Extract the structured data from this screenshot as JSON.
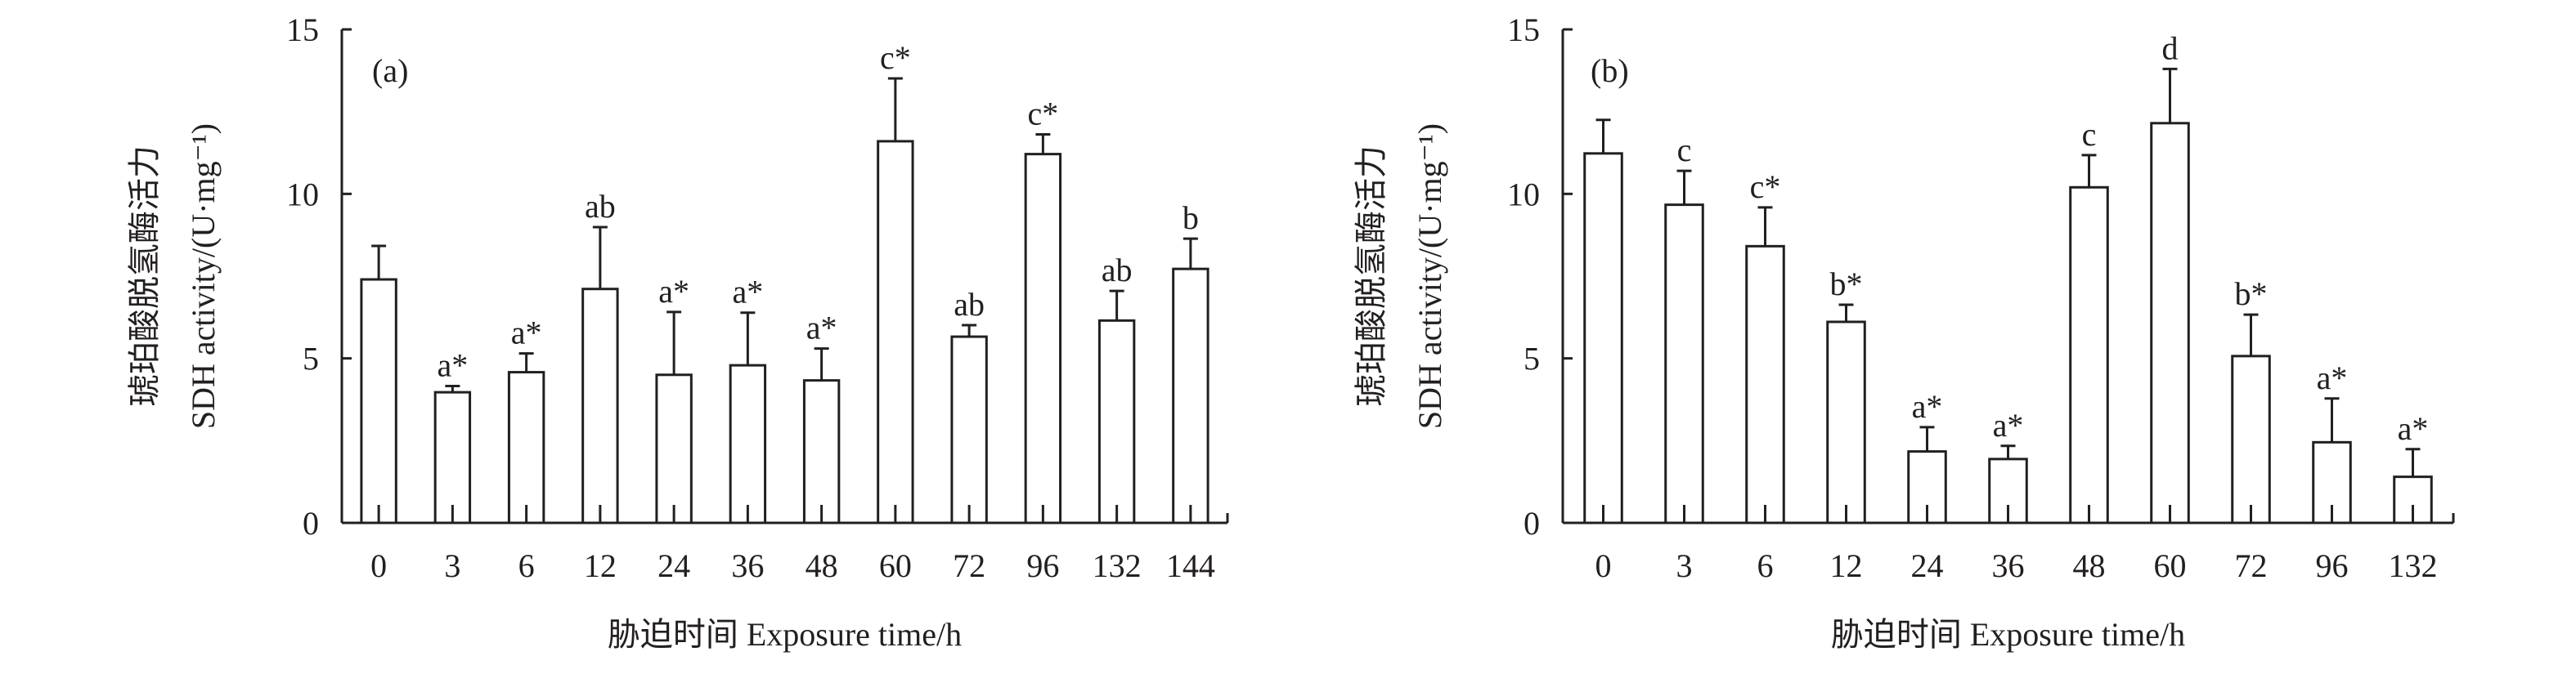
{
  "chart_data": [
    {
      "type": "bar",
      "panel_label": "(a)",
      "xlabel": "胁迫时间 Exposure time/h",
      "ylabel_cn": "琥珀酸脱氢酶活力",
      "ylabel_en": "SDH activity/(U·mg⁻¹)",
      "ylim": [
        0,
        15
      ],
      "yticks": [
        "0",
        "5",
        "10",
        "15"
      ],
      "categories": [
        "0",
        "3",
        "6",
        "12",
        "24",
        "36",
        "48",
        "60",
        "72",
        "96",
        "132",
        "144"
      ],
      "values": [
        7.4,
        3.97,
        4.58,
        7.11,
        4.5,
        4.79,
        4.33,
        11.6,
        5.66,
        11.21,
        6.15,
        7.72
      ],
      "error_upper": [
        8.42,
        4.16,
        5.15,
        8.99,
        6.41,
        6.39,
        5.3,
        13.51,
        6.01,
        11.81,
        7.05,
        8.64
      ],
      "annotations": [
        "",
        "a*",
        "a*",
        "ab",
        "a*",
        "a*",
        "a*",
        "c*",
        "ab",
        "c*",
        "ab",
        "b"
      ],
      "grid": false
    },
    {
      "type": "bar",
      "panel_label": "(b)",
      "xlabel": "胁迫时间 Exposure time/h",
      "ylabel_cn": "琥珀酸脱氢酶活力",
      "ylabel_en": "SDH activity/(U·mg⁻¹)",
      "ylim": [
        0,
        15
      ],
      "yticks": [
        "0",
        "5",
        "10",
        "15"
      ],
      "categories": [
        "0",
        "3",
        "6",
        "12",
        "24",
        "36",
        "48",
        "60",
        "72",
        "96",
        "132"
      ],
      "values": [
        11.23,
        9.67,
        8.41,
        6.11,
        2.17,
        1.94,
        10.2,
        12.15,
        5.07,
        2.45,
        1.4
      ],
      "error_upper": [
        12.25,
        10.7,
        9.59,
        6.63,
        2.91,
        2.34,
        11.18,
        13.8,
        6.33,
        3.78,
        2.24
      ],
      "annotations": [
        "",
        "c",
        "c*",
        "b*",
        "a*",
        "a*",
        "c",
        "d",
        "b*",
        "a*",
        "a*"
      ],
      "grid": false
    }
  ]
}
